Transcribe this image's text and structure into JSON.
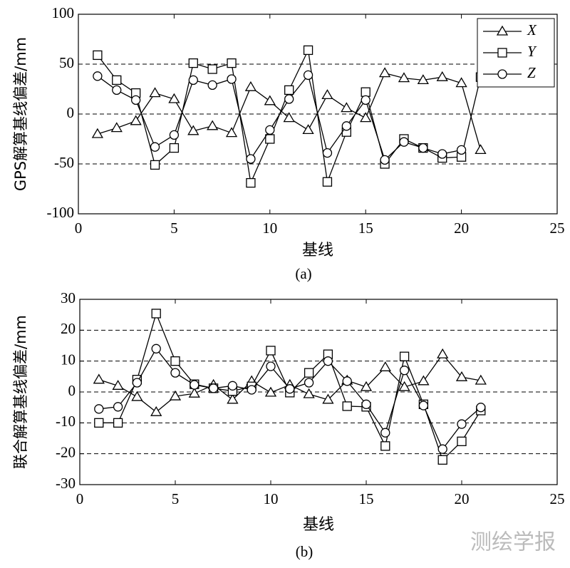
{
  "chart_data": [
    {
      "type": "line",
      "title": "(a)",
      "xlabel": "基线",
      "ylabel": "GPS解算基线偏差/mm",
      "x": [
        1,
        2,
        3,
        4,
        5,
        6,
        7,
        8,
        9,
        10,
        11,
        12,
        13,
        14,
        15,
        16,
        17,
        18,
        19,
        20,
        21
      ],
      "xlim": [
        0,
        25
      ],
      "xticks": [
        0,
        5,
        10,
        15,
        20,
        25
      ],
      "ylim": [
        -100,
        100
      ],
      "yticks": [
        -100,
        -50,
        0,
        50,
        100
      ],
      "grid": true,
      "legend": "upper right",
      "series": [
        {
          "name": "X",
          "color": "#000000",
          "marker": "triangle",
          "values": [
            -20,
            -14,
            -7,
            21,
            15,
            -17,
            -12,
            -19,
            27,
            13,
            -4,
            -16,
            19,
            6,
            -4,
            41,
            36,
            34,
            37,
            31,
            -36
          ]
        },
        {
          "name": "Y",
          "color": "#000000",
          "marker": "square",
          "values": [
            59,
            34,
            21,
            -51,
            -34,
            51,
            45,
            51,
            -69,
            -25,
            24,
            64,
            -68,
            -18,
            22,
            -50,
            -25,
            -34,
            -44,
            -43,
            37
          ]
        },
        {
          "name": "Z",
          "color": "#000000",
          "marker": "circle",
          "values": [
            38,
            24,
            14,
            -33,
            -21,
            34,
            29,
            35,
            -45,
            -16,
            15,
            39,
            -39,
            -12,
            14,
            -46,
            -28,
            -34,
            -40,
            -36,
            null
          ]
        }
      ]
    },
    {
      "type": "line",
      "title": "(b)",
      "xlabel": "基线",
      "ylabel": "联合解算基线偏差/mm",
      "x": [
        1,
        2,
        3,
        4,
        5,
        6,
        7,
        8,
        9,
        10,
        11,
        12,
        13,
        14,
        15,
        16,
        17,
        18,
        19,
        20,
        21
      ],
      "xlim": [
        0,
        25
      ],
      "xticks": [
        0,
        5,
        10,
        15,
        20,
        25
      ],
      "ylim": [
        -30,
        30
      ],
      "yticks": [
        -30,
        -20,
        -10,
        0,
        10,
        20,
        30
      ],
      "grid": true,
      "series": [
        {
          "name": "X",
          "color": "#000000",
          "marker": "triangle",
          "values": [
            4,
            2,
            -1.6,
            -6.5,
            -1.4,
            -0.5,
            2.3,
            -2.5,
            3.5,
            -0.2,
            2.3,
            -0.7,
            -2.5,
            3.7,
            1.6,
            8,
            1.6,
            3.5,
            12.2,
            4.8,
            3.7
          ]
        },
        {
          "name": "Y",
          "color": "#000000",
          "marker": "square",
          "values": [
            -10,
            -10,
            4,
            25.4,
            10,
            2.5,
            1.2,
            0.3,
            1.8,
            13.4,
            -0.2,
            6.2,
            12.2,
            -4.6,
            -4.8,
            -17.5,
            11.5,
            -4,
            -22,
            -16,
            -6
          ]
        },
        {
          "name": "Z",
          "color": "#000000",
          "marker": "circle",
          "values": [
            -5.5,
            -4.8,
            3,
            14,
            6.2,
            2.3,
            1.2,
            2,
            0.7,
            8.3,
            1,
            3,
            10,
            3.5,
            -4,
            -13.2,
            7,
            -4.4,
            -18.5,
            -10.4,
            -5
          ]
        }
      ]
    }
  ],
  "watermark": "测绘学报"
}
